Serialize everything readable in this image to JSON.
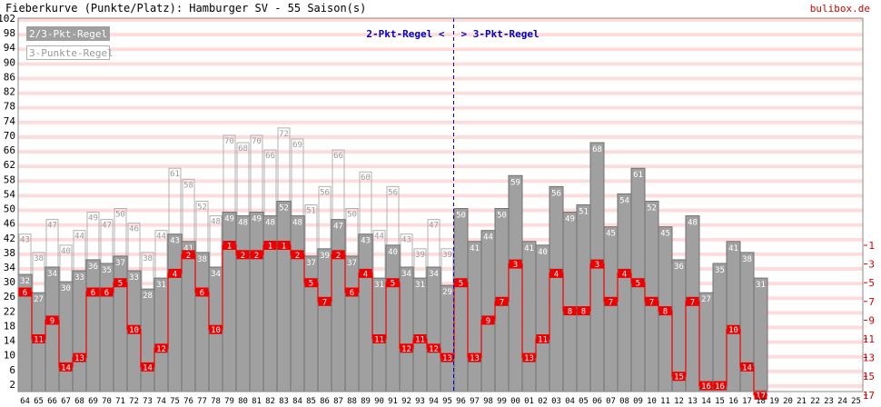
{
  "header": {
    "title": "Fieberkurve (Punkte/Platz): Hamburger SV - 55 Saison(s)",
    "site": "bulibox.de"
  },
  "colors": {
    "stripe": "#ffdcdc",
    "bar_fill": "#a0a0a0",
    "bar_stroke": "#707070",
    "outline_stroke": "#b0b0b0",
    "outline_label": "#999999",
    "place_line": "#ee0000",
    "place_box": "#ee0000",
    "divider": "#0000cc",
    "axis_text": "#000000",
    "place_axis_text": "#d40000"
  },
  "chart_data": {
    "type": "bar",
    "categories": [
      "64",
      "65",
      "66",
      "67",
      "68",
      "69",
      "70",
      "71",
      "72",
      "73",
      "74",
      "75",
      "76",
      "77",
      "78",
      "79",
      "80",
      "81",
      "82",
      "83",
      "84",
      "85",
      "86",
      "87",
      "88",
      "89",
      "90",
      "91",
      "92",
      "93",
      "94",
      "95",
      "96",
      "97",
      "98",
      "99",
      "00",
      "01",
      "02",
      "03",
      "04",
      "05",
      "06",
      "07",
      "08",
      "09",
      "10",
      "11",
      "12",
      "13",
      "14",
      "15",
      "16",
      "17",
      "18",
      "19",
      "20",
      "21",
      "22",
      "23",
      "24",
      "25"
    ],
    "legend": [
      "2/3-Pkt-Regel",
      "3-Punkte-Regel"
    ],
    "series": [
      {
        "name": "2/3-Pkt-Regel",
        "values": [
          32,
          27,
          34,
          30,
          33,
          36,
          35,
          37,
          33,
          28,
          31,
          43,
          41,
          38,
          34,
          49,
          48,
          49,
          48,
          52,
          48,
          37,
          39,
          47,
          37,
          43,
          31,
          40,
          34,
          31,
          34,
          29,
          50,
          41,
          44,
          50,
          59,
          41,
          40,
          56,
          49,
          51,
          68,
          45,
          54,
          61,
          52,
          45,
          36,
          48,
          27,
          35,
          41,
          38,
          31,
          null,
          null,
          null,
          null,
          null,
          null,
          null
        ]
      },
      {
        "name": "3-Punkte-Regel",
        "values": [
          43,
          38,
          47,
          40,
          44,
          49,
          47,
          50,
          46,
          38,
          44,
          61,
          58,
          52,
          48,
          70,
          68,
          70,
          66,
          72,
          69,
          51,
          56,
          66,
          50,
          60,
          44,
          56,
          43,
          39,
          47,
          39,
          null,
          null,
          null,
          null,
          null,
          null,
          null,
          null,
          null,
          null,
          null,
          null,
          null,
          null,
          null,
          null,
          null,
          null,
          null,
          null,
          null,
          null,
          null,
          null,
          null,
          null,
          null,
          null,
          null,
          null
        ]
      },
      {
        "name": "Platz",
        "values": [
          6,
          11,
          9,
          14,
          13,
          6,
          6,
          5,
          10,
          14,
          12,
          4,
          2,
          6,
          10,
          1,
          2,
          2,
          1,
          1,
          2,
          5,
          7,
          2,
          6,
          4,
          11,
          5,
          12,
          11,
          12,
          13,
          5,
          13,
          9,
          7,
          3,
          13,
          11,
          4,
          8,
          8,
          3,
          7,
          4,
          5,
          7,
          8,
          15,
          7,
          16,
          16,
          10,
          14,
          17,
          null,
          null,
          null,
          null,
          null,
          null,
          null
        ]
      }
    ],
    "y_left": {
      "ticks": [
        2,
        6,
        10,
        14,
        18,
        22,
        26,
        30,
        34,
        38,
        42,
        46,
        50,
        54,
        58,
        62,
        66,
        70,
        74,
        78,
        82,
        86,
        90,
        94,
        98,
        102
      ],
      "ylim": [
        0,
        102
      ]
    },
    "y_right": {
      "ticks": [
        1,
        3,
        5,
        7,
        9,
        11,
        13,
        15,
        17
      ],
      "range": [
        1,
        18
      ]
    },
    "annotations": {
      "left": "2-Pkt-Regel <",
      "right": "> 3-Pkt-Regel",
      "divider_between": [
        "95",
        "96"
      ]
    },
    "grid": true
  }
}
